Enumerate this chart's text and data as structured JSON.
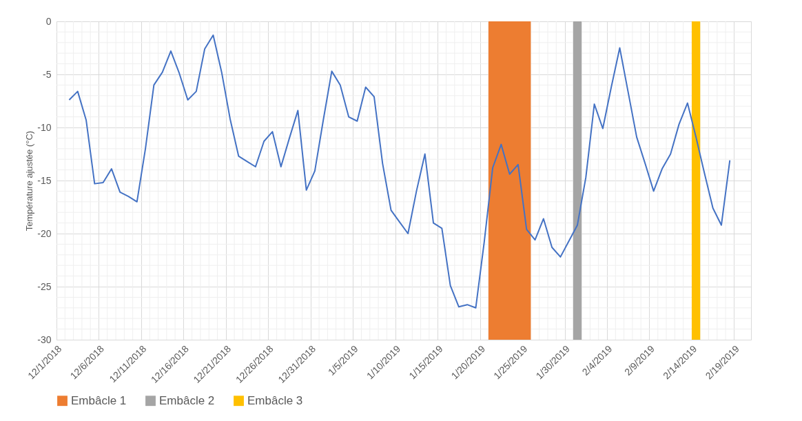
{
  "chart_data": {
    "type": "line",
    "ylabel": "Température ajustée  (°C)",
    "x": [
      "2018-12-02T12:00",
      "2018-12-03T12:00",
      "2018-12-04T12:00",
      "2018-12-05T12:00",
      "2018-12-06T12:00",
      "2018-12-07T12:00",
      "2018-12-08T12:00",
      "2018-12-09T12:00",
      "2018-12-10T12:00",
      "2018-12-11T12:00",
      "2018-12-12T12:00",
      "2018-12-13T12:00",
      "2018-12-14T12:00",
      "2018-12-15T12:00",
      "2018-12-16T12:00",
      "2018-12-17T12:00",
      "2018-12-18T12:00",
      "2018-12-19T12:00",
      "2018-12-20T12:00",
      "2018-12-21T12:00",
      "2018-12-22T12:00",
      "2018-12-23T12:00",
      "2018-12-24T12:00",
      "2018-12-25T12:00",
      "2018-12-26T12:00",
      "2018-12-27T12:00",
      "2018-12-28T12:00",
      "2018-12-29T12:00",
      "2018-12-30T12:00",
      "2018-12-31T12:00",
      "2019-01-01T12:00",
      "2019-01-02T12:00",
      "2019-01-03T12:00",
      "2019-01-04T12:00",
      "2019-01-05T12:00",
      "2019-01-06T12:00",
      "2019-01-07T12:00",
      "2019-01-08T12:00",
      "2019-01-09T12:00",
      "2019-01-10T12:00",
      "2019-01-11T12:00",
      "2019-01-12T12:00",
      "2019-01-13T12:00",
      "2019-01-14T12:00",
      "2019-01-15T12:00",
      "2019-01-16T12:00",
      "2019-01-17T12:00",
      "2019-01-18T12:00",
      "2019-01-19T12:00",
      "2019-01-20T12:00",
      "2019-01-21T12:00",
      "2019-01-22T12:00",
      "2019-01-23T12:00",
      "2019-01-24T12:00",
      "2019-01-25T12:00",
      "2019-01-26T12:00",
      "2019-01-27T12:00",
      "2019-01-28T12:00",
      "2019-01-29T12:00",
      "2019-01-30T12:00",
      "2019-01-31T12:00",
      "2019-02-01T12:00",
      "2019-02-02T12:00",
      "2019-02-03T12:00",
      "2019-02-04T12:00",
      "2019-02-05T12:00",
      "2019-02-06T12:00",
      "2019-02-07T12:00",
      "2019-02-08T12:00",
      "2019-02-09T12:00",
      "2019-02-10T12:00",
      "2019-02-11T12:00",
      "2019-02-12T12:00",
      "2019-02-13T12:00",
      "2019-02-14T12:00",
      "2019-02-15T12:00",
      "2019-02-16T12:00",
      "2019-02-17T12:00",
      "2019-02-18T12:00"
    ],
    "series": [
      {
        "color": "#4472c4",
        "values": [
          -7.4,
          -6.6,
          -9.3,
          -15.3,
          -15.2,
          -13.9,
          -16.1,
          -16.5,
          -17.0,
          -12.0,
          -6.0,
          -4.8,
          -2.8,
          -4.9,
          -7.4,
          -6.6,
          -2.6,
          -1.3,
          -4.8,
          -9.2,
          -12.7,
          -13.2,
          -13.7,
          -11.3,
          -10.4,
          -13.7,
          -11.0,
          -8.4,
          -15.9,
          -14.1,
          -9.3,
          -4.7,
          -6.0,
          -9.0,
          -9.4,
          -6.2,
          -7.1,
          -13.4,
          -17.8,
          -18.9,
          -20.0,
          -16.0,
          -12.5,
          -19.0,
          -19.5,
          -24.9,
          -26.9,
          -26.7,
          -27.0,
          -20.8,
          -13.8,
          -11.6,
          -14.4,
          -13.5,
          -19.6,
          -20.6,
          -18.6,
          -21.3,
          -22.2,
          -20.7,
          -19.2,
          -14.7,
          -7.8,
          -10.1,
          -6.2,
          -2.5,
          -6.7,
          -10.9,
          -13.4,
          -16.0,
          -13.9,
          -12.5,
          -9.7,
          -7.7,
          -10.9,
          -14.3,
          -17.6,
          -19.2,
          -13.1
        ]
      }
    ],
    "bands": [
      {
        "axis": "x",
        "from": "2019-01-21",
        "to": "2019-01-26",
        "label": "Embâcle 1",
        "color": "#ed7d31"
      },
      {
        "axis": "x",
        "from": "2019-01-31",
        "to": "2019-02-01",
        "label": "Embâcle 2",
        "color": "#a5a5a5"
      },
      {
        "axis": "x",
        "from": "2019-02-14",
        "to": "2019-02-15",
        "label": "Embâcle 3",
        "color": "#ffc000"
      }
    ],
    "xlim": [
      "2018-12-01",
      "2019-02-21"
    ],
    "xticks": [
      {
        "value": "2018-12-01",
        "label": "12/1/2018"
      },
      {
        "value": "2018-12-06",
        "label": "12/6/2018"
      },
      {
        "value": "2018-12-11",
        "label": "12/11/2018"
      },
      {
        "value": "2018-12-16",
        "label": "12/16/2018"
      },
      {
        "value": "2018-12-21",
        "label": "12/21/2018"
      },
      {
        "value": "2018-12-26",
        "label": "12/26/2018"
      },
      {
        "value": "2018-12-31",
        "label": "12/31/2018"
      },
      {
        "value": "2019-01-05",
        "label": "1/5/2019"
      },
      {
        "value": "2019-01-10",
        "label": "1/10/2019"
      },
      {
        "value": "2019-01-15",
        "label": "1/15/2019"
      },
      {
        "value": "2019-01-20",
        "label": "1/20/2019"
      },
      {
        "value": "2019-01-25",
        "label": "1/25/2019"
      },
      {
        "value": "2019-01-30",
        "label": "1/30/2019"
      },
      {
        "value": "2019-02-04",
        "label": "2/4/2019"
      },
      {
        "value": "2019-02-09",
        "label": "2/9/2019"
      },
      {
        "value": "2019-02-14",
        "label": "2/14/2019"
      },
      {
        "value": "2019-02-19",
        "label": "2/19/2019"
      }
    ],
    "ylim": [
      -30,
      0
    ],
    "yticks": [
      -30,
      -25,
      -20,
      -15,
      -10,
      -5,
      0
    ],
    "grid": true,
    "legend": "bottom",
    "line_style": "solid",
    "marker": "none"
  }
}
